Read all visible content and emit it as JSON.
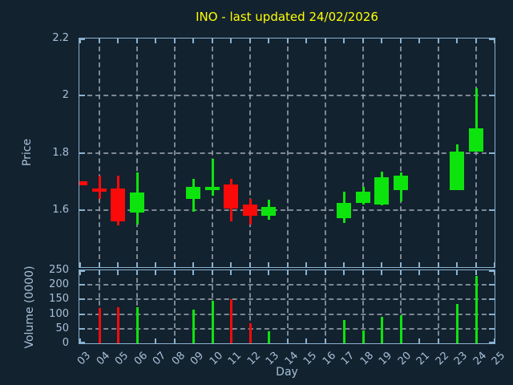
{
  "title": "INO - last updated 24/02/2026",
  "colors": {
    "background": "#13222f",
    "axis": "#8ab2d0",
    "text": "#a6c0d8",
    "grid": "#98a2ab",
    "title": "#ffff00",
    "up": "#0de40d",
    "down": "#fb0a0a"
  },
  "chart_data": [
    {
      "type": "candlestick",
      "title": "INO - last updated 24/02/2026",
      "xlabel": "Day",
      "ylabel": "Price",
      "ylim": [
        1.4,
        2.2
      ],
      "grid": true,
      "yticks": [
        {
          "value": 1.6,
          "label": "1.6"
        },
        {
          "value": 1.8,
          "label": "1.8"
        },
        {
          "value": 2.0,
          "label": "2"
        },
        {
          "value": 2.2,
          "label": "2.2"
        }
      ],
      "xticks": [
        "03",
        "04",
        "05",
        "06",
        "07",
        "08",
        "09",
        "10",
        "11",
        "12",
        "13",
        "14",
        "15",
        "16",
        "17",
        "18",
        "19",
        "20",
        "21",
        "22",
        "23",
        "24",
        "25"
      ],
      "first_day": 3,
      "grid_days": [
        4,
        6,
        8,
        10,
        12,
        14,
        16,
        18,
        20,
        22,
        24
      ],
      "candles": [
        {
          "day": 3,
          "open": 1.7,
          "high": 1.7,
          "low": 1.685,
          "close": 1.685
        },
        {
          "day": 4,
          "open": 1.675,
          "high": 1.72,
          "low": 1.64,
          "close": 1.665
        },
        {
          "day": 5,
          "open": 1.675,
          "high": 1.72,
          "low": 1.545,
          "close": 1.56
        },
        {
          "day": 6,
          "open": 1.59,
          "high": 1.73,
          "low": 1.55,
          "close": 1.66
        },
        {
          "day": 9,
          "open": 1.64,
          "high": 1.71,
          "low": 1.595,
          "close": 1.68
        },
        {
          "day": 10,
          "open": 1.67,
          "high": 1.78,
          "low": 1.65,
          "close": 1.68
        },
        {
          "day": 11,
          "open": 1.69,
          "high": 1.71,
          "low": 1.56,
          "close": 1.605
        },
        {
          "day": 12,
          "open": 1.62,
          "high": 1.64,
          "low": 1.55,
          "close": 1.58
        },
        {
          "day": 13,
          "open": 1.58,
          "high": 1.635,
          "low": 1.565,
          "close": 1.61
        },
        {
          "day": 17,
          "open": 1.57,
          "high": 1.665,
          "low": 1.555,
          "close": 1.625
        },
        {
          "day": 18,
          "open": 1.625,
          "high": 1.68,
          "low": 1.62,
          "close": 1.665
        },
        {
          "day": 19,
          "open": 1.62,
          "high": 1.735,
          "low": 1.615,
          "close": 1.715
        },
        {
          "day": 20,
          "open": 1.67,
          "high": 1.73,
          "low": 1.63,
          "close": 1.72
        },
        {
          "day": 23,
          "open": 1.67,
          "high": 1.83,
          "low": 1.67,
          "close": 1.805
        },
        {
          "day": 24,
          "open": 1.805,
          "high": 2.025,
          "low": 1.805,
          "close": 1.885
        }
      ]
    },
    {
      "type": "bar",
      "ylabel": "Volume (0000)",
      "ylim": [
        0,
        250
      ],
      "grid": true,
      "yticks": [
        {
          "value": 0,
          "label": "0"
        },
        {
          "value": 50,
          "label": "50"
        },
        {
          "value": 100,
          "label": "100"
        },
        {
          "value": 150,
          "label": "150"
        },
        {
          "value": 200,
          "label": "200"
        },
        {
          "value": 250,
          "label": "250"
        }
      ],
      "bars": [
        {
          "day": 4,
          "value": 120
        },
        {
          "day": 5,
          "value": 125
        },
        {
          "day": 6,
          "value": 125
        },
        {
          "day": 9,
          "value": 115
        },
        {
          "day": 10,
          "value": 145
        },
        {
          "day": 11,
          "value": 150
        },
        {
          "day": 12,
          "value": 70
        },
        {
          "day": 13,
          "value": 40
        },
        {
          "day": 17,
          "value": 80
        },
        {
          "day": 18,
          "value": 45
        },
        {
          "day": 19,
          "value": 90
        },
        {
          "day": 20,
          "value": 95
        },
        {
          "day": 23,
          "value": 135
        },
        {
          "day": 24,
          "value": 230
        }
      ]
    }
  ]
}
